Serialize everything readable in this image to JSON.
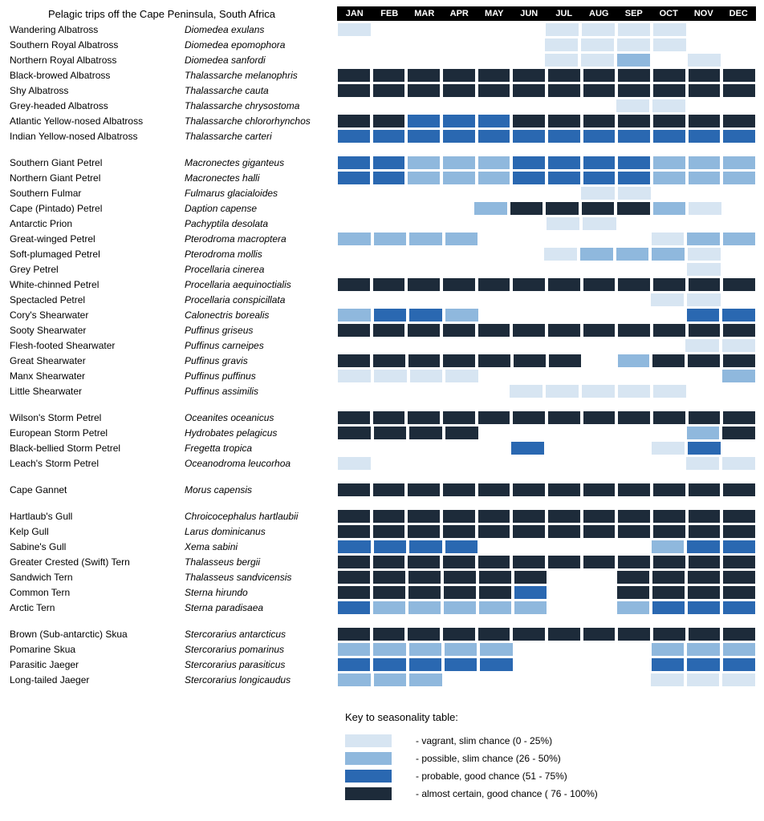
{
  "title": "Pelagic trips off the Cape Peninsula, South Africa",
  "months": [
    "JAN",
    "FEB",
    "MAR",
    "APR",
    "MAY",
    "JUN",
    "JUL",
    "AUG",
    "SEP",
    "OCT",
    "NOV",
    "DEC"
  ],
  "colors": {
    "0": "",
    "1": "#d7e5f2",
    "2": "#8fb8dd",
    "3": "#2a68b1",
    "4": "#1d2b3a"
  },
  "cell_border_color": "#ffffff",
  "header_bg": "#000000",
  "header_fg": "#ffffff",
  "legend": {
    "title": "Key to seasonality table:",
    "items": [
      {
        "level": 1,
        "label": "- vagrant, slim chance (0 - 25%)"
      },
      {
        "level": 2,
        "label": "- possible, slim chance (26 - 50%)"
      },
      {
        "level": 3,
        "label": "- probable, good chance (51 - 75%)"
      },
      {
        "level": 4,
        "label": "- almost certain, good chance ( 76 - 100%)"
      }
    ]
  },
  "groups": [
    [
      {
        "common": "Wandering Albatross",
        "sci": "Diomedea exulans",
        "m": [
          1,
          0,
          0,
          0,
          0,
          0,
          1,
          1,
          1,
          1,
          0,
          0
        ]
      },
      {
        "common": "Southern Royal Albatross",
        "sci": "Diomedea epomophora",
        "m": [
          0,
          0,
          0,
          0,
          0,
          0,
          1,
          1,
          1,
          1,
          0,
          0
        ]
      },
      {
        "common": "Northern Royal Albatross",
        "sci": "Diomedea sanfordi",
        "m": [
          0,
          0,
          0,
          0,
          0,
          0,
          1,
          1,
          2,
          0,
          1,
          0
        ]
      },
      {
        "common": "Black-browed Albatross",
        "sci": "Thalassarche melanophris",
        "m": [
          4,
          4,
          4,
          4,
          4,
          4,
          4,
          4,
          4,
          4,
          4,
          4
        ]
      },
      {
        "common": "Shy Albatross",
        "sci": "Thalassarche cauta",
        "m": [
          4,
          4,
          4,
          4,
          4,
          4,
          4,
          4,
          4,
          4,
          4,
          4
        ]
      },
      {
        "common": "Grey-headed Albatross",
        "sci": "Thalassarche chrysostoma",
        "m": [
          0,
          0,
          0,
          0,
          0,
          0,
          0,
          0,
          1,
          1,
          0,
          0
        ]
      },
      {
        "common": "Atlantic Yellow-nosed Albatross",
        "sci": "Thalassarche chlororhynchos",
        "m": [
          4,
          4,
          3,
          3,
          3,
          4,
          4,
          4,
          4,
          4,
          4,
          4
        ]
      },
      {
        "common": "Indian Yellow-nosed Albatross",
        "sci": "Thalassarche carteri",
        "m": [
          3,
          3,
          3,
          3,
          3,
          3,
          3,
          3,
          3,
          3,
          3,
          3
        ]
      }
    ],
    [
      {
        "common": "Southern Giant Petrel",
        "sci": "Macronectes giganteus",
        "m": [
          3,
          3,
          2,
          2,
          2,
          3,
          3,
          3,
          3,
          2,
          2,
          2
        ]
      },
      {
        "common": "Northern Giant Petrel",
        "sci": "Macronectes halli",
        "m": [
          3,
          3,
          2,
          2,
          2,
          3,
          3,
          3,
          3,
          2,
          2,
          2
        ]
      },
      {
        "common": "Southern Fulmar",
        "sci": "Fulmarus glacialoides",
        "m": [
          0,
          0,
          0,
          0,
          0,
          0,
          0,
          1,
          1,
          0,
          0,
          0
        ]
      },
      {
        "common": "Cape (Pintado) Petrel",
        "sci": "Daption capense",
        "m": [
          0,
          0,
          0,
          0,
          2,
          4,
          4,
          4,
          4,
          2,
          1,
          0
        ]
      },
      {
        "common": "Antarctic Prion",
        "sci": "Pachyptila desolata",
        "m": [
          0,
          0,
          0,
          0,
          0,
          0,
          1,
          1,
          0,
          0,
          0,
          0
        ]
      },
      {
        "common": "Great-winged Petrel",
        "sci": "Pterodroma macroptera",
        "m": [
          2,
          2,
          2,
          2,
          0,
          0,
          0,
          0,
          0,
          1,
          2,
          2
        ]
      },
      {
        "common": "Soft-plumaged Petrel",
        "sci": "Pterodroma mollis",
        "m": [
          0,
          0,
          0,
          0,
          0,
          0,
          1,
          2,
          2,
          2,
          1,
          0
        ]
      },
      {
        "common": "Grey Petrel",
        "sci": "Procellaria cinerea",
        "m": [
          0,
          0,
          0,
          0,
          0,
          0,
          0,
          0,
          0,
          0,
          1,
          0
        ]
      },
      {
        "common": "White-chinned Petrel",
        "sci": "Procellaria aequinoctialis",
        "m": [
          4,
          4,
          4,
          4,
          4,
          4,
          4,
          4,
          4,
          4,
          4,
          4
        ]
      },
      {
        "common": "Spectacled Petrel",
        "sci": "Procellaria conspicillata",
        "m": [
          0,
          0,
          0,
          0,
          0,
          0,
          0,
          0,
          0,
          1,
          1,
          0
        ]
      },
      {
        "common": "Cory's Shearwater",
        "sci": "Calonectris borealis",
        "m": [
          2,
          3,
          3,
          2,
          0,
          0,
          0,
          0,
          0,
          0,
          3,
          3
        ]
      },
      {
        "common": "Sooty Shearwater",
        "sci": "Puffinus griseus",
        "m": [
          4,
          4,
          4,
          4,
          4,
          4,
          4,
          4,
          4,
          4,
          4,
          4
        ]
      },
      {
        "common": "Flesh-footed Shearwater",
        "sci": "Puffinus carneipes",
        "m": [
          0,
          0,
          0,
          0,
          0,
          0,
          0,
          0,
          0,
          0,
          1,
          1
        ]
      },
      {
        "common": "Great Shearwater",
        "sci": "Puffinus gravis",
        "m": [
          4,
          4,
          4,
          4,
          4,
          4,
          4,
          0,
          2,
          4,
          4,
          4
        ]
      },
      {
        "common": "Manx Shearwater",
        "sci": "Puffinus puffinus",
        "m": [
          1,
          1,
          1,
          1,
          0,
          0,
          0,
          0,
          0,
          0,
          0,
          2
        ]
      },
      {
        "common": "Little Shearwater",
        "sci": "Puffinus assimilis",
        "m": [
          0,
          0,
          0,
          0,
          0,
          1,
          1,
          1,
          1,
          1,
          0,
          0
        ]
      }
    ],
    [
      {
        "common": "Wilson's Storm Petrel",
        "sci": "Oceanites oceanicus",
        "m": [
          4,
          4,
          4,
          4,
          4,
          4,
          4,
          4,
          4,
          4,
          4,
          4
        ]
      },
      {
        "common": "European Storm Petrel",
        "sci": "Hydrobates pelagicus",
        "m": [
          4,
          4,
          4,
          4,
          0,
          0,
          0,
          0,
          0,
          0,
          2,
          4
        ]
      },
      {
        "common": "Black-bellied Storm Petrel",
        "sci": "Fregetta tropica",
        "m": [
          0,
          0,
          0,
          0,
          0,
          3,
          0,
          0,
          0,
          1,
          3,
          0
        ]
      },
      {
        "common": "Leach's Storm Petrel",
        "sci": "Oceanodroma leucorhoa",
        "m": [
          1,
          0,
          0,
          0,
          0,
          0,
          0,
          0,
          0,
          0,
          1,
          1
        ]
      }
    ],
    [
      {
        "common": "Cape Gannet",
        "sci": "Morus capensis",
        "m": [
          4,
          4,
          4,
          4,
          4,
          4,
          4,
          4,
          4,
          4,
          4,
          4
        ]
      }
    ],
    [
      {
        "common": "Hartlaub's Gull",
        "sci": "Chroicocephalus hartlaubii",
        "m": [
          4,
          4,
          4,
          4,
          4,
          4,
          4,
          4,
          4,
          4,
          4,
          4
        ]
      },
      {
        "common": "Kelp Gull",
        "sci": "Larus dominicanus",
        "m": [
          4,
          4,
          4,
          4,
          4,
          4,
          4,
          4,
          4,
          4,
          4,
          4
        ]
      },
      {
        "common": "Sabine's Gull",
        "sci": "Xema sabini",
        "m": [
          3,
          3,
          3,
          3,
          0,
          0,
          0,
          0,
          0,
          2,
          3,
          3
        ]
      },
      {
        "common": "Greater Crested (Swift) Tern",
        "sci": "Thalasseus bergii",
        "m": [
          4,
          4,
          4,
          4,
          4,
          4,
          4,
          4,
          4,
          4,
          4,
          4
        ]
      },
      {
        "common": "Sandwich Tern",
        "sci": "Thalasseus sandvicensis",
        "m": [
          4,
          4,
          4,
          4,
          4,
          4,
          0,
          0,
          4,
          4,
          4,
          4
        ]
      },
      {
        "common": "Common Tern",
        "sci": "Sterna hirundo",
        "m": [
          4,
          4,
          4,
          4,
          4,
          3,
          0,
          0,
          4,
          4,
          4,
          4
        ]
      },
      {
        "common": "Arctic Tern",
        "sci": "Sterna paradisaea",
        "m": [
          3,
          2,
          2,
          2,
          2,
          2,
          0,
          0,
          2,
          3,
          3,
          3
        ]
      }
    ],
    [
      {
        "common": "Brown (Sub-antarctic) Skua",
        "sci": "Stercorarius antarcticus",
        "m": [
          4,
          4,
          4,
          4,
          4,
          4,
          4,
          4,
          4,
          4,
          4,
          4
        ]
      },
      {
        "common": "Pomarine Skua",
        "sci": "Stercorarius pomarinus",
        "m": [
          2,
          2,
          2,
          2,
          2,
          0,
          0,
          0,
          0,
          2,
          2,
          2
        ]
      },
      {
        "common": "Parasitic Jaeger",
        "sci": "Stercorarius parasiticus",
        "m": [
          3,
          3,
          3,
          3,
          3,
          0,
          0,
          0,
          0,
          3,
          3,
          3
        ]
      },
      {
        "common": "Long-tailed Jaeger",
        "sci": "Stercorarius longicaudus",
        "m": [
          2,
          2,
          2,
          0,
          0,
          0,
          0,
          0,
          0,
          1,
          1,
          1
        ]
      }
    ]
  ]
}
